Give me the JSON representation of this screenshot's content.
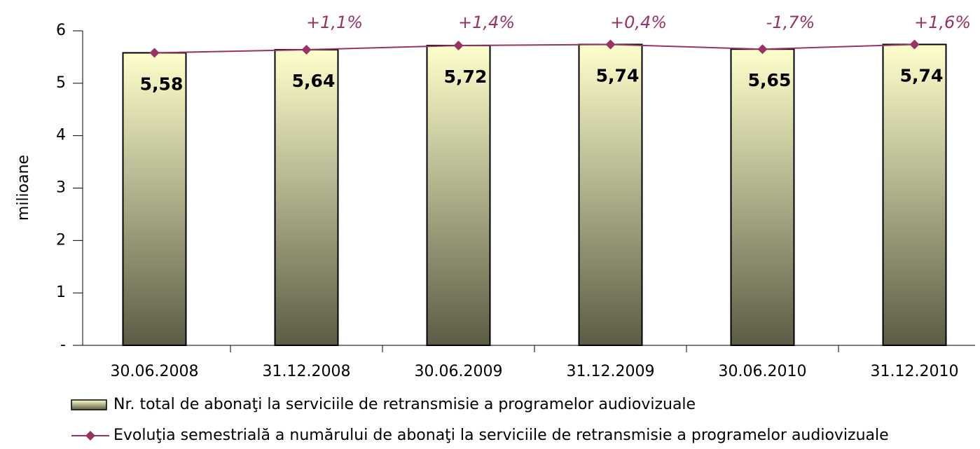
{
  "chart_data": {
    "type": "bar",
    "y_label": "milioane",
    "categories": [
      "30.06.2008",
      "31.12.2008",
      "30.06.2009",
      "31.12.2009",
      "30.06.2010",
      "31.12.2010"
    ],
    "series": [
      {
        "name": "Nr. total de abonaţi la serviciile de retransmisie a programelor audiovizuale",
        "type": "bar",
        "color": "#ffffcc",
        "values": [
          5.58,
          5.64,
          5.72,
          5.74,
          5.65,
          5.74
        ],
        "value_labels": [
          "5,58",
          "5,64",
          "5,72",
          "5,74",
          "5,65",
          "5,74"
        ]
      },
      {
        "name": "Evoluţia semestrială a numărului de abonaţi la serviciile de retransmisie a programelor audiovizuale",
        "type": "line",
        "color": "#993366",
        "values": [
          5.58,
          5.64,
          5.72,
          5.74,
          5.65,
          5.74
        ]
      }
    ],
    "annotations": [
      null,
      "+1,1%",
      "+1,4%",
      "+0,4%",
      "-1,7%",
      "+1,6%"
    ],
    "ylim": [
      0,
      6
    ],
    "yticks": [
      {
        "value": 0,
        "label": "-"
      },
      1,
      2,
      3,
      4,
      5,
      6
    ],
    "grid": false
  }
}
